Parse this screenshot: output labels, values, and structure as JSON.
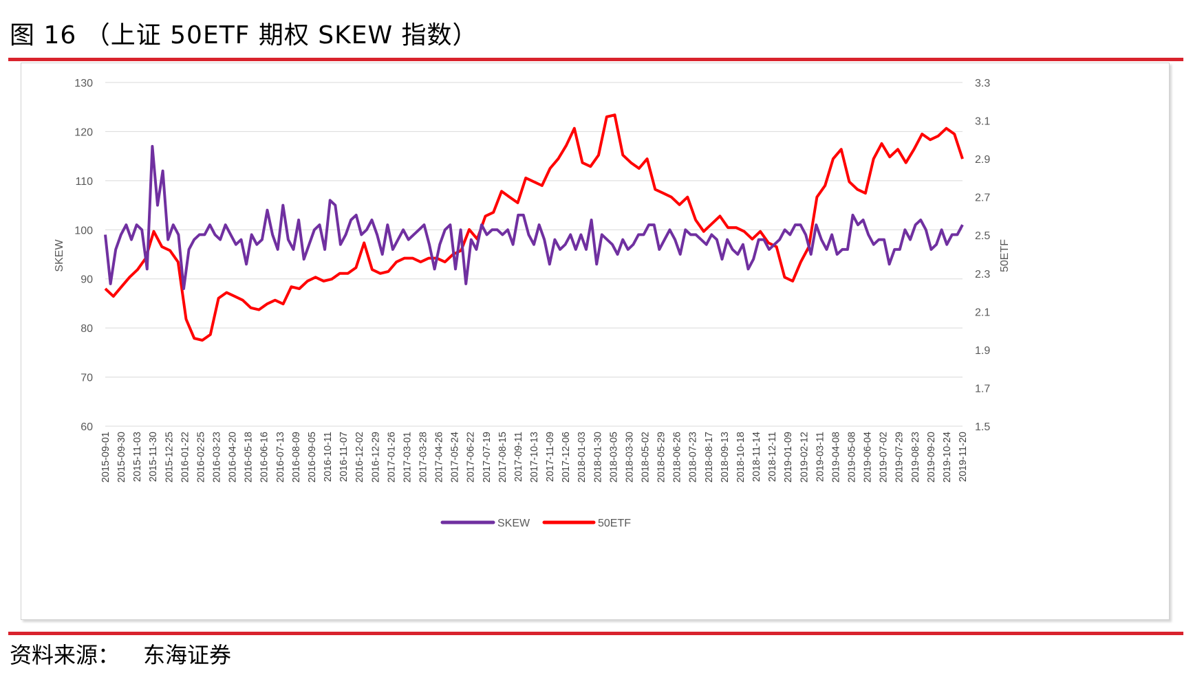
{
  "header": {
    "title": "图 16  （上证 50ETF 期权 SKEW 指数）"
  },
  "footer": {
    "source_label": "资料来源：",
    "source_name": "东海证券"
  },
  "colors": {
    "accent_rule": "#d9232d",
    "skew": "#7030a0",
    "etf": "#ff0000",
    "grid": "#d9d9d9"
  },
  "chart_data": {
    "type": "line",
    "title": "",
    "ylabel_left": "SKEW",
    "ylabel_right": "50ETF",
    "ylim_left": [
      60,
      130
    ],
    "ylim_right": [
      1.5,
      3.3
    ],
    "yticks_left": [
      60,
      70,
      80,
      90,
      100,
      110,
      120,
      130
    ],
    "yticks_right": [
      "1.5",
      "1.7",
      "1.9",
      "2.1",
      "2.3",
      "2.5",
      "2.7",
      "2.9",
      "3.1",
      "3.3"
    ],
    "grid": true,
    "legend_position": "bottom",
    "x_ticks": [
      "2015-09-01",
      "2015-09-30",
      "2015-11-03",
      "2015-11-30",
      "2015-12-25",
      "2016-01-22",
      "2016-02-25",
      "2016-03-23",
      "2016-04-20",
      "2016-05-18",
      "2016-06-16",
      "2016-07-13",
      "2016-08-09",
      "2016-09-05",
      "2016-10-11",
      "2016-11-07",
      "2016-12-02",
      "2016-12-29",
      "2017-01-26",
      "2017-03-01",
      "2017-03-28",
      "2017-04-26",
      "2017-05-24",
      "2017-06-22",
      "2017-07-19",
      "2017-08-15",
      "2017-09-11",
      "2017-10-13",
      "2017-11-09",
      "2017-12-06",
      "2018-01-03",
      "2018-01-30",
      "2018-03-05",
      "2018-03-30",
      "2018-05-02",
      "2018-05-29",
      "2018-06-26",
      "2018-07-23",
      "2018-08-17",
      "2018-09-13",
      "2018-10-18",
      "2018-11-14",
      "2018-12-11",
      "2019-01-09",
      "2019-02-12",
      "2019-03-11",
      "2019-04-08",
      "2019-05-08",
      "2019-06-04",
      "2019-07-02",
      "2019-07-29",
      "2019-08-23",
      "2019-09-20",
      "2019-10-24",
      "2019-11-20"
    ],
    "series": [
      {
        "name": "SKEW",
        "axis": "left",
        "values": [
          99,
          89,
          96,
          99,
          101,
          98,
          101,
          100,
          92,
          117,
          105,
          112,
          98,
          101,
          99,
          88,
          96,
          98,
          99,
          99,
          101,
          99,
          98,
          101,
          99,
          97,
          98,
          93,
          99,
          97,
          98,
          104,
          99,
          96,
          105,
          98,
          96,
          102,
          94,
          97,
          100,
          101,
          96,
          106,
          105,
          97,
          99,
          102,
          103,
          99,
          100,
          102,
          99,
          95,
          101,
          96,
          98,
          100,
          98,
          99,
          100,
          101,
          97,
          92,
          97,
          100,
          101,
          92,
          100,
          89,
          98,
          96,
          101,
          99,
          100,
          100,
          99,
          100,
          97,
          103,
          103,
          99,
          97,
          101,
          98,
          93,
          98,
          96,
          97,
          99,
          96,
          99,
          96,
          102,
          93,
          99,
          98,
          97,
          95,
          98,
          96,
          97,
          99,
          99,
          101,
          101,
          96,
          98,
          100,
          98,
          95,
          100,
          99,
          99,
          98,
          97,
          99,
          98,
          94,
          98,
          96,
          95,
          97,
          92,
          94,
          98,
          98,
          96,
          97,
          98,
          100,
          99,
          101,
          101,
          99,
          95,
          101,
          98,
          96,
          99,
          95,
          96,
          96,
          103,
          101,
          102,
          99,
          97,
          98,
          98,
          93,
          96,
          96,
          100,
          98,
          101,
          102,
          100,
          96,
          97,
          100,
          97,
          99,
          99,
          101
        ],
        "stride_days": 9,
        "start": "2015-09-01"
      },
      {
        "name": "50ETF",
        "axis": "right",
        "values": [
          2.22,
          2.18,
          2.23,
          2.28,
          2.32,
          2.38,
          2.52,
          2.44,
          2.42,
          2.36,
          2.06,
          1.96,
          1.95,
          1.98,
          2.17,
          2.2,
          2.18,
          2.16,
          2.12,
          2.11,
          2.14,
          2.16,
          2.14,
          2.23,
          2.22,
          2.26,
          2.28,
          2.26,
          2.27,
          2.3,
          2.3,
          2.33,
          2.46,
          2.32,
          2.3,
          2.31,
          2.36,
          2.38,
          2.38,
          2.36,
          2.38,
          2.38,
          2.36,
          2.4,
          2.42,
          2.53,
          2.48,
          2.6,
          2.62,
          2.73,
          2.7,
          2.67,
          2.8,
          2.78,
          2.76,
          2.85,
          2.9,
          2.97,
          3.06,
          2.88,
          2.86,
          2.92,
          3.12,
          3.13,
          2.92,
          2.88,
          2.85,
          2.9,
          2.74,
          2.72,
          2.7,
          2.66,
          2.7,
          2.58,
          2.52,
          2.56,
          2.6,
          2.54,
          2.54,
          2.52,
          2.48,
          2.52,
          2.46,
          2.44,
          2.28,
          2.26,
          2.36,
          2.44,
          2.7,
          2.76,
          2.9,
          2.95,
          2.78,
          2.74,
          2.72,
          2.9,
          2.98,
          2.91,
          2.95,
          2.88,
          2.95,
          3.03,
          3.0,
          3.02,
          3.06,
          3.03,
          2.9
        ],
        "stride_days": 14,
        "start": "2015-09-01"
      }
    ]
  }
}
